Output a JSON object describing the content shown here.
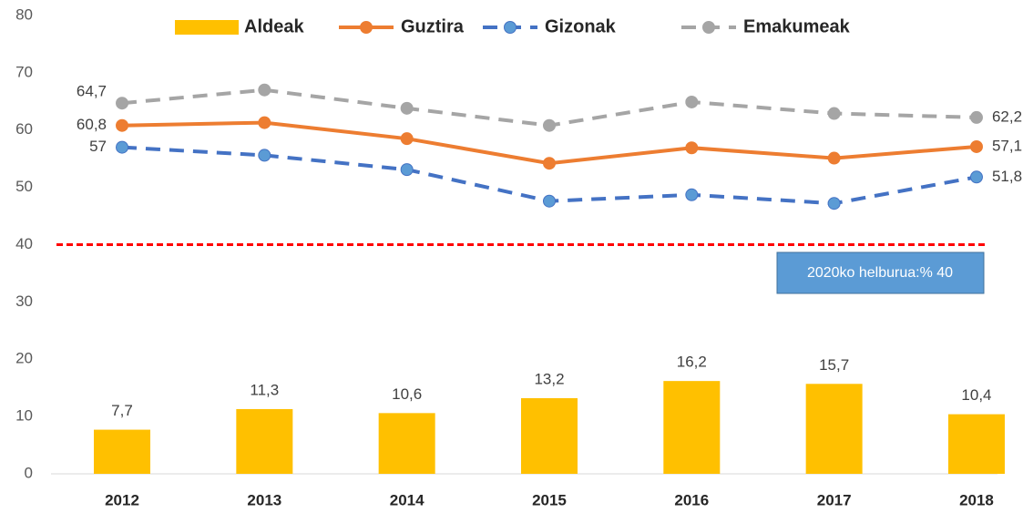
{
  "chart_data": {
    "type": "bar_line",
    "categories": [
      "2012",
      "2013",
      "2014",
      "2015",
      "2016",
      "2017",
      "2018"
    ],
    "series": [
      {
        "name": "Aldeak",
        "type": "bar",
        "color": "#ffc000",
        "values": [
          7.7,
          11.3,
          10.6,
          13.2,
          16.2,
          15.7,
          10.4
        ],
        "value_labels": [
          "7,7",
          "11,3",
          "10,6",
          "13,2",
          "16,2",
          "15,7",
          "10,4"
        ]
      },
      {
        "name": "Guztira",
        "type": "line",
        "color": "#ed7d31",
        "dashed": false,
        "values": [
          60.8,
          61.3,
          58.5,
          54.2,
          56.9,
          55.1,
          57.1
        ],
        "value_labels": [
          "60,8",
          null,
          null,
          null,
          null,
          null,
          "57,1"
        ]
      },
      {
        "name": "Gizonak",
        "type": "line",
        "color": "#4472c4",
        "marker_color": "#5b9bd5",
        "dashed": true,
        "values": [
          57,
          55.6,
          53.1,
          47.6,
          48.7,
          47.2,
          51.8
        ],
        "value_labels": [
          "57",
          null,
          null,
          null,
          null,
          null,
          "51,8"
        ]
      },
      {
        "name": "Emakumeak",
        "type": "line",
        "color": "#a5a5a5",
        "dashed": true,
        "values": [
          64.7,
          67.0,
          63.8,
          60.8,
          64.9,
          62.9,
          62.2
        ],
        "value_labels": [
          "64,7",
          null,
          null,
          null,
          null,
          null,
          "62,2"
        ]
      }
    ],
    "reference_line": {
      "value": 40,
      "color": "#ff0000"
    },
    "annotation": "2020ko helburua:% 40",
    "ylim": [
      0,
      80
    ],
    "yticks": [
      0,
      10,
      20,
      30,
      40,
      50,
      60,
      70,
      80
    ],
    "grid": false,
    "legend": "top"
  }
}
